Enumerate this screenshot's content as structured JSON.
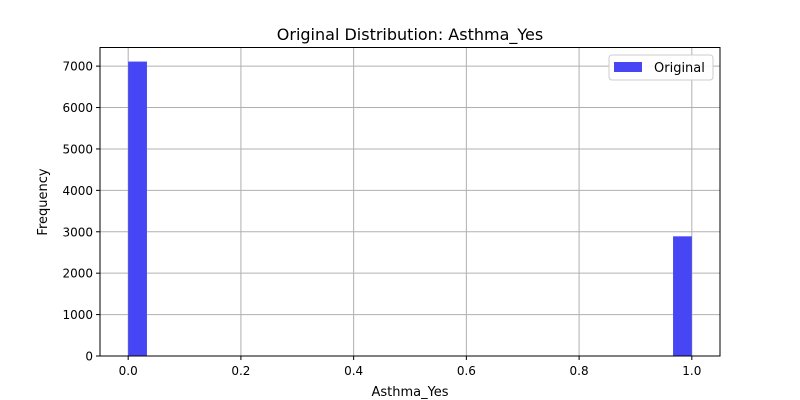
{
  "chart_data": {
    "type": "bar",
    "title": "Original Distribution: Asthma_Yes",
    "xlabel": "Asthma_Yes",
    "ylabel": "Frequency",
    "xlim": [
      -0.05,
      1.05
    ],
    "ylim": [
      0,
      7450
    ],
    "x_ticks": [
      "0.0",
      "0.2",
      "0.4",
      "0.6",
      "0.8",
      "1.0"
    ],
    "y_ticks": [
      "0",
      "1000",
      "2000",
      "3000",
      "4000",
      "5000",
      "6000",
      "7000"
    ],
    "grid": true,
    "legend_position": "top-right",
    "series": [
      {
        "name": "Original",
        "color": "#4646f5",
        "bins": [
          {
            "x_start": 0.0,
            "x_end": 0.0333,
            "count": 7110
          },
          {
            "x_start": 0.9667,
            "x_end": 1.0,
            "count": 2890
          }
        ]
      }
    ]
  }
}
